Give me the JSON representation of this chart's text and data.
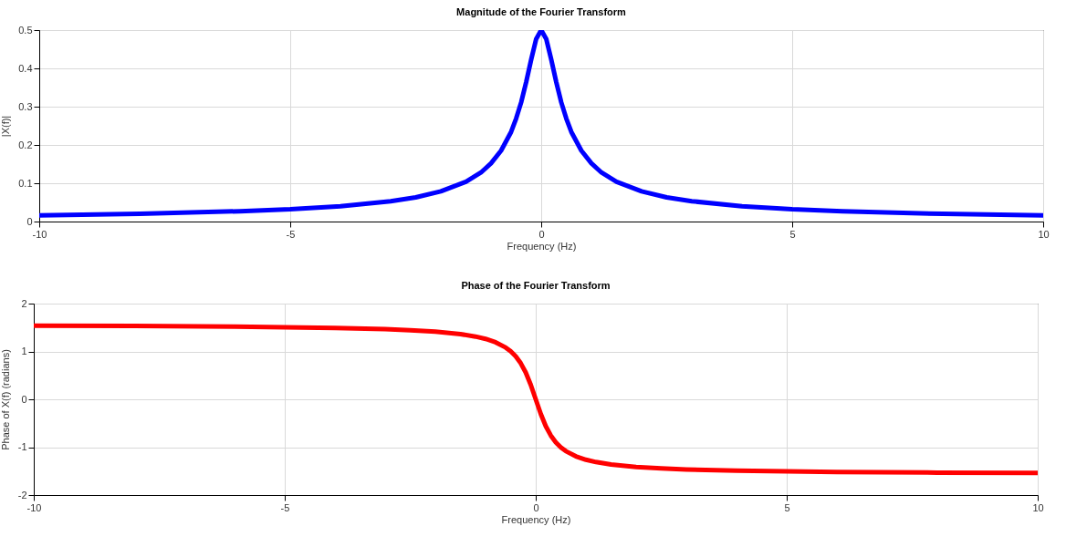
{
  "chart_data": [
    {
      "type": "line",
      "title": "Magnitude of the Fourier Transform",
      "xlabel": "Frequency (Hz)",
      "ylabel": "|X(f)|",
      "x": [
        -10,
        -8,
        -6,
        -5,
        -4,
        -3,
        -2.5,
        -2,
        -1.5,
        -1.2,
        -1,
        -0.8,
        -0.6,
        -0.5,
        -0.4,
        -0.3,
        -0.2,
        -0.1,
        0,
        0.1,
        0.2,
        0.3,
        0.4,
        0.5,
        0.6,
        0.8,
        1,
        1.2,
        1.5,
        2,
        2.5,
        3,
        4,
        5,
        6,
        8,
        10
      ],
      "series": [
        {
          "color": "#0000ff",
          "values": [
            0.016,
            0.02,
            0.027,
            0.032,
            0.04,
            0.053,
            0.063,
            0.079,
            0.104,
            0.128,
            0.152,
            0.185,
            0.234,
            0.269,
            0.311,
            0.364,
            0.423,
            0.477,
            0.5,
            0.477,
            0.423,
            0.364,
            0.311,
            0.269,
            0.234,
            0.185,
            0.152,
            0.128,
            0.104,
            0.079,
            0.063,
            0.053,
            0.04,
            0.032,
            0.027,
            0.02,
            0.016
          ]
        }
      ],
      "xlim": [
        -10,
        10
      ],
      "ylim": [
        0,
        0.5
      ],
      "xticks": [
        -10,
        -5,
        0,
        5,
        10
      ],
      "yticks": [
        0,
        0.1,
        0.2,
        0.3,
        0.4,
        0.5
      ],
      "grid": true
    },
    {
      "type": "line",
      "title": "Phase of the Fourier Transform",
      "xlabel": "Frequency (Hz)",
      "ylabel": "Phase of X(f) (radians)",
      "x": [
        -10,
        -8,
        -6,
        -5,
        -4,
        -3,
        -2.5,
        -2,
        -1.5,
        -1.2,
        -1,
        -0.8,
        -0.6,
        -0.5,
        -0.4,
        -0.3,
        -0.2,
        -0.1,
        0,
        0.1,
        0.2,
        0.3,
        0.4,
        0.5,
        0.6,
        0.8,
        1,
        1.2,
        1.5,
        2,
        2.5,
        3,
        4,
        5,
        6,
        8,
        10
      ],
      "series": [
        {
          "color": "#ff0000",
          "values": [
            1.539,
            1.531,
            1.518,
            1.507,
            1.491,
            1.465,
            1.444,
            1.413,
            1.362,
            1.311,
            1.263,
            1.192,
            1.083,
            1.004,
            0.899,
            0.756,
            0.561,
            0.304,
            0,
            -0.304,
            -0.561,
            -0.756,
            -0.899,
            -1.004,
            -1.083,
            -1.192,
            -1.263,
            -1.311,
            -1.362,
            -1.413,
            -1.444,
            -1.465,
            -1.491,
            -1.507,
            -1.518,
            -1.531,
            -1.539
          ]
        }
      ],
      "xlim": [
        -10,
        10
      ],
      "ylim": [
        -2,
        2
      ],
      "xticks": [
        -10,
        -5,
        0,
        5,
        10
      ],
      "yticks": [
        -2,
        -1,
        0,
        1,
        2
      ],
      "grid": true
    }
  ]
}
